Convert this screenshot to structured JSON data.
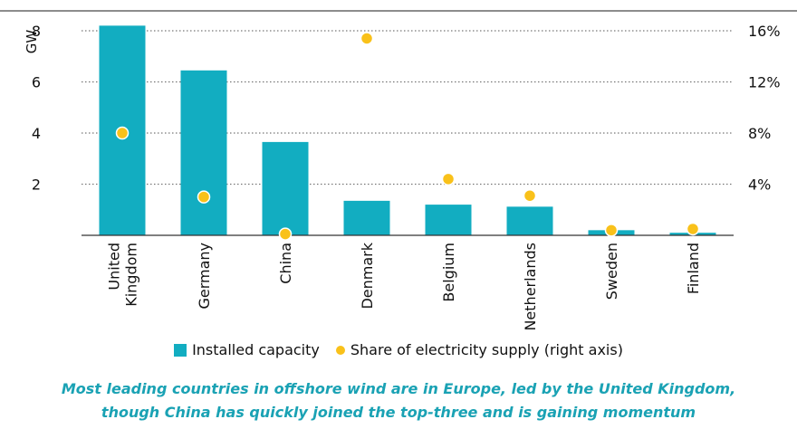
{
  "chart_data": {
    "type": "bar",
    "title": "",
    "ylabel": "GW",
    "ylabel_right": "",
    "categories": [
      "United Kingdom",
      "Germany",
      "China",
      "Denmark",
      "Belgium",
      "Netherlands",
      "Sweden",
      "Finland"
    ],
    "category_lines": [
      [
        "United",
        "Kingdom"
      ],
      [
        "Germany"
      ],
      [
        "China"
      ],
      [
        "Denmark"
      ],
      [
        "Belgium"
      ],
      [
        "Netherlands"
      ],
      [
        "Sweden"
      ],
      [
        "Finland"
      ]
    ],
    "ylim": [
      0,
      8
    ],
    "yticks": [
      2,
      4,
      6,
      8
    ],
    "ylim_right": [
      0,
      16
    ],
    "yticks_right": [
      4,
      8,
      12,
      16
    ],
    "yticks_right_labels": [
      "4%",
      "8%",
      "12%",
      "16%"
    ],
    "grid": "horizontal-dotted",
    "legend_position": "bottom",
    "series": [
      {
        "name": "Installed capacity",
        "kind": "bar",
        "axis": "left",
        "unit": "GW",
        "color": "#12adc1",
        "values": [
          8.2,
          6.45,
          3.65,
          1.35,
          1.2,
          1.12,
          0.2,
          0.1
        ]
      },
      {
        "name": "Share of electricity supply (right axis)",
        "kind": "scatter",
        "axis": "right",
        "unit": "%",
        "color": "#f9c11a",
        "values": [
          8.0,
          3.0,
          0.1,
          15.4,
          4.4,
          3.1,
          0.4,
          0.5
        ]
      }
    ]
  },
  "caption": {
    "line1": "Most leading countries in offshore wind are in Europe, led by the United Kingdom,",
    "line2": "though China has quickly joined the top-three and is gaining momentum"
  }
}
